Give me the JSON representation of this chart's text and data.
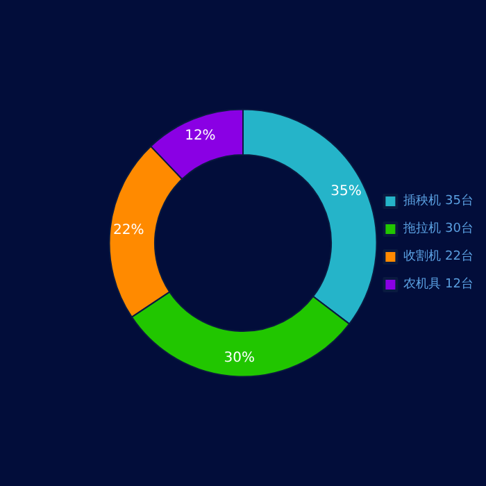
{
  "chart_data": {
    "type": "donut",
    "categories": [
      "插秧机 35台",
      "拖拉机 30台",
      "收割机 22台",
      "农机具 12台"
    ],
    "values": [
      35,
      30,
      22,
      12
    ],
    "value_labels": [
      "35%",
      "30%",
      "22%",
      "12%"
    ],
    "colors": [
      "#25b4c9",
      "#21c600",
      "#ff8a00",
      "#8a00e4"
    ],
    "legend": "right"
  }
}
